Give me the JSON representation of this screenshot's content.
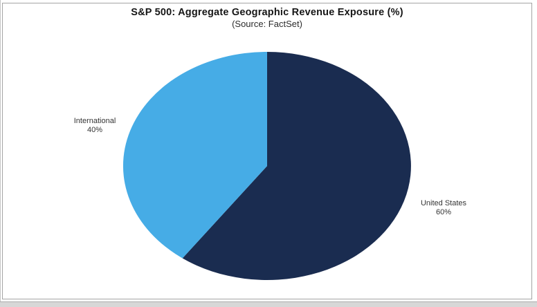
{
  "window": {
    "background": "#ffffff",
    "frame_border_color": "#a3a3a3",
    "bottom_strip_color": "#d7d7d7"
  },
  "chart_data": {
    "type": "pie",
    "title": "S&P 500: Aggregate Geographic Revenue Exposure (%)",
    "subtitle": "(Source: FactSet)",
    "start_angle": "12 o'clock",
    "direction": "clockwise",
    "legend_position": "outside-labels",
    "slices": [
      {
        "label": "United States",
        "value": 60,
        "pct_label": "60%",
        "color": "#1a2c50"
      },
      {
        "label": "International",
        "value": 40,
        "pct_label": "40%",
        "color": "#46ace6"
      }
    ]
  }
}
